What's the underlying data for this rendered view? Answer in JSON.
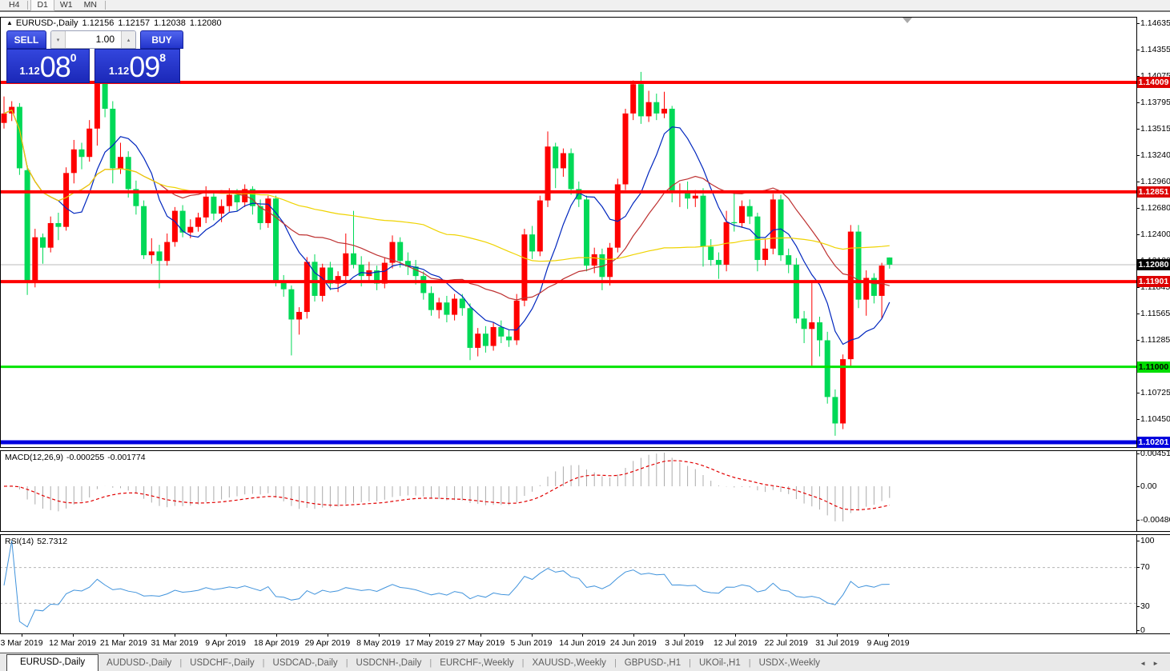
{
  "toolbar": {
    "buttons": [
      {
        "label": "H4",
        "active": false
      },
      {
        "label": "D1",
        "active": true
      },
      {
        "label": "W1",
        "active": false
      },
      {
        "label": "MN",
        "active": false
      }
    ]
  },
  "header": {
    "collapse_icon": "▲",
    "symbol": "EURUSD-,Daily",
    "open": "1.12156",
    "high": "1.12157",
    "low": "1.12038",
    "close": "1.12080"
  },
  "trade_panel": {
    "sell_label": "SELL",
    "buy_label": "BUY",
    "volume": "1.00",
    "spin_down_icon": "▾",
    "spin_up_icon": "▴",
    "sell_price": {
      "prefix": "1.12",
      "big": "08",
      "sup": "0"
    },
    "buy_price": {
      "prefix": "1.12",
      "big": "09",
      "sup": "8"
    }
  },
  "chart_data": {
    "type": "candlestick",
    "title": "EURUSD-,Daily",
    "colors": {
      "bull": "#fe0000",
      "bear": "#00d957",
      "current_line": "#bbbbbb",
      "ma_fast": "#0026be",
      "ma_mid": "#be3232",
      "ma_slow": "#efd300",
      "macd_hist": "#acacac",
      "macd_signal": "#e10000",
      "rsi_line": "#4093dc"
    },
    "current_price": {
      "label": "1.12080",
      "value": 1.1208,
      "badge_bg": "#000000",
      "badge_fg": "#ffffff"
    },
    "levels": [
      {
        "price": 1.14009,
        "label": "1.14009",
        "color": "#fe0000",
        "thickness": 4,
        "badge_bg": "#dd0000",
        "badge_fg": "#ffffff"
      },
      {
        "price": 1.12851,
        "label": "1.12851",
        "color": "#fe0000",
        "thickness": 4,
        "badge_bg": "#dd0000",
        "badge_fg": "#ffffff"
      },
      {
        "price": 1.11901,
        "label": "1.11901",
        "color": "#fe0000",
        "thickness": 4,
        "badge_bg": "#dd0000",
        "badge_fg": "#ffffff"
      },
      {
        "price": 1.11,
        "label": "1.11000",
        "color": "#00e400",
        "thickness": 3,
        "badge_bg": "#00dd00",
        "badge_fg": "#000000"
      },
      {
        "price": 1.10201,
        "label": "1.10201",
        "color": "#0000e0",
        "thickness": 5,
        "badge_bg": "#0000dd",
        "badge_fg": "#ffffff"
      }
    ],
    "price_axis_ticks": [
      "1.14635",
      "1.14355",
      "1.14075",
      "1.13795",
      "1.13515",
      "1.13240",
      "1.12960",
      "1.12680",
      "1.12400",
      "1.12120",
      "1.11845",
      "1.11565",
      "1.11285",
      "1.11000",
      "1.10725",
      "1.10450"
    ],
    "moving_averages": [
      {
        "period": 8
      },
      {
        "period": 21
      },
      {
        "period": 55
      }
    ],
    "macd": {
      "label": "MACD(12,26,9)",
      "main_value": "-0.000255",
      "signal_value": "-0.001774",
      "fast": 12,
      "slow": 26,
      "signal": 9,
      "axis_ticks": [
        "0.004517",
        "0.00",
        "-0.004806"
      ]
    },
    "rsi": {
      "label": "RSI(14)",
      "value": "52.7312",
      "period": 14,
      "guide_levels": [
        70,
        30
      ],
      "axis_ticks": [
        "100",
        "70",
        "30",
        "0"
      ]
    },
    "x_axis_dates": [
      "3 Mar 2019",
      "12 Mar 2019",
      "21 Mar 2019",
      "31 Mar 2019",
      "9 Apr 2019",
      "18 Apr 2019",
      "29 Apr 2019",
      "8 May 2019",
      "17 May 2019",
      "27 May 2019",
      "5 Jun 2019",
      "14 Jun 2019",
      "24 Jun 2019",
      "3 Jul 2019",
      "12 Jul 2019",
      "22 Jul 2019",
      "31 Jul 2019",
      "9 Aug 2019"
    ],
    "candles": [
      [
        1.1358,
        1.1386,
        1.1352,
        1.1368
      ],
      [
        1.1368,
        1.1381,
        1.136,
        1.1375
      ],
      [
        1.1375,
        1.1379,
        1.1303,
        1.131
      ],
      [
        1.1308,
        1.1313,
        1.1176,
        1.119
      ],
      [
        1.119,
        1.1246,
        1.1184,
        1.1237
      ],
      [
        1.1237,
        1.1241,
        1.1209,
        1.1226
      ],
      [
        1.1226,
        1.1259,
        1.1221,
        1.1252
      ],
      [
        1.1252,
        1.1263,
        1.1234,
        1.1248
      ],
      [
        1.1248,
        1.1311,
        1.1244,
        1.1305
      ],
      [
        1.1305,
        1.134,
        1.1294,
        1.133
      ],
      [
        1.133,
        1.1337,
        1.1309,
        1.1322
      ],
      [
        1.1322,
        1.1361,
        1.1317,
        1.1352
      ],
      [
        1.1352,
        1.1438,
        1.1334,
        1.1434
      ],
      [
        1.1434,
        1.1439,
        1.1364,
        1.1373
      ],
      [
        1.1373,
        1.1381,
        1.1294,
        1.131
      ],
      [
        1.131,
        1.1337,
        1.1304,
        1.1322
      ],
      [
        1.1322,
        1.1328,
        1.1279,
        1.1288
      ],
      [
        1.1288,
        1.1297,
        1.1261,
        1.127
      ],
      [
        1.127,
        1.1276,
        1.1214,
        1.1218
      ],
      [
        1.1218,
        1.1236,
        1.1209,
        1.1222
      ],
      [
        1.1222,
        1.1229,
        1.1183,
        1.1212
      ],
      [
        1.1212,
        1.1241,
        1.1207,
        1.1232
      ],
      [
        1.1232,
        1.1269,
        1.1227,
        1.1265
      ],
      [
        1.1265,
        1.1271,
        1.1237,
        1.1242
      ],
      [
        1.1242,
        1.1256,
        1.1236,
        1.1248
      ],
      [
        1.1248,
        1.1263,
        1.1243,
        1.1258
      ],
      [
        1.1258,
        1.1291,
        1.1252,
        1.128
      ],
      [
        1.128,
        1.1286,
        1.1255,
        1.1262
      ],
      [
        1.1262,
        1.1277,
        1.1253,
        1.127
      ],
      [
        1.127,
        1.1289,
        1.1264,
        1.1282
      ],
      [
        1.1282,
        1.1288,
        1.1265,
        1.1274
      ],
      [
        1.1274,
        1.1293,
        1.1269,
        1.1288
      ],
      [
        1.1288,
        1.1291,
        1.1261,
        1.127
      ],
      [
        1.127,
        1.1277,
        1.1245,
        1.1252
      ],
      [
        1.1252,
        1.1281,
        1.1247,
        1.1278
      ],
      [
        1.1278,
        1.1281,
        1.1185,
        1.119
      ],
      [
        1.119,
        1.1197,
        1.1174,
        1.1182
      ],
      [
        1.1182,
        1.1186,
        1.1112,
        1.115
      ],
      [
        1.115,
        1.1163,
        1.1134,
        1.1158
      ],
      [
        1.1158,
        1.1216,
        1.1151,
        1.1211
      ],
      [
        1.1211,
        1.1219,
        1.1169,
        1.1175
      ],
      [
        1.1175,
        1.1209,
        1.1169,
        1.1205
      ],
      [
        1.1205,
        1.1211,
        1.1181,
        1.1188
      ],
      [
        1.1188,
        1.1201,
        1.1179,
        1.1196
      ],
      [
        1.1196,
        1.1241,
        1.1189,
        1.122
      ],
      [
        1.122,
        1.1265,
        1.1204,
        1.1208
      ],
      [
        1.1208,
        1.1217,
        1.1185,
        1.1196
      ],
      [
        1.1196,
        1.1211,
        1.1189,
        1.1202
      ],
      [
        1.1202,
        1.1207,
        1.1181,
        1.1188
      ],
      [
        1.1188,
        1.1216,
        1.1183,
        1.121
      ],
      [
        1.121,
        1.1239,
        1.1204,
        1.1232
      ],
      [
        1.1232,
        1.1237,
        1.1205,
        1.1212
      ],
      [
        1.1212,
        1.1221,
        1.1197,
        1.1206
      ],
      [
        1.1206,
        1.1213,
        1.1187,
        1.1196
      ],
      [
        1.1196,
        1.1201,
        1.1171,
        1.1178
      ],
      [
        1.1178,
        1.1185,
        1.1154,
        1.116
      ],
      [
        1.116,
        1.1173,
        1.1151,
        1.1168
      ],
      [
        1.1168,
        1.1175,
        1.1147,
        1.1155
      ],
      [
        1.1155,
        1.1177,
        1.1149,
        1.1172
      ],
      [
        1.1172,
        1.1177,
        1.1154,
        1.1162
      ],
      [
        1.1162,
        1.1167,
        1.1107,
        1.112
      ],
      [
        1.112,
        1.1141,
        1.1111,
        1.1135
      ],
      [
        1.1135,
        1.1143,
        1.1115,
        1.1122
      ],
      [
        1.1122,
        1.1147,
        1.1117,
        1.1142
      ],
      [
        1.1142,
        1.1149,
        1.1125,
        1.1132
      ],
      [
        1.1132,
        1.1139,
        1.1121,
        1.1128
      ],
      [
        1.1128,
        1.1177,
        1.1123,
        1.117
      ],
      [
        1.117,
        1.1246,
        1.1164,
        1.124
      ],
      [
        1.124,
        1.1249,
        1.1214,
        1.1222
      ],
      [
        1.1222,
        1.1281,
        1.1217,
        1.1276
      ],
      [
        1.1276,
        1.1349,
        1.1269,
        1.1333
      ],
      [
        1.1333,
        1.1337,
        1.1289,
        1.131
      ],
      [
        1.131,
        1.1331,
        1.1301,
        1.1326
      ],
      [
        1.1326,
        1.1331,
        1.1282,
        1.1288
      ],
      [
        1.1288,
        1.1296,
        1.1269,
        1.1277
      ],
      [
        1.1277,
        1.1281,
        1.1201,
        1.1207
      ],
      [
        1.1207,
        1.1226,
        1.1199,
        1.1219
      ],
      [
        1.1219,
        1.1225,
        1.1181,
        1.1195
      ],
      [
        1.1195,
        1.1231,
        1.1186,
        1.1226
      ],
      [
        1.1226,
        1.1299,
        1.1221,
        1.1293
      ],
      [
        1.1293,
        1.1373,
        1.1287,
        1.1368
      ],
      [
        1.1368,
        1.1403,
        1.1361,
        1.1399
      ],
      [
        1.1399,
        1.1412,
        1.1357,
        1.1365
      ],
      [
        1.1365,
        1.1392,
        1.1359,
        1.138
      ],
      [
        1.138,
        1.1389,
        1.1361,
        1.1368
      ],
      [
        1.1368,
        1.1391,
        1.1363,
        1.1373
      ],
      [
        1.1373,
        1.1376,
        1.1274,
        1.1284
      ],
      [
        1.1284,
        1.1294,
        1.1269,
        1.1285
      ],
      [
        1.1285,
        1.1296,
        1.1267,
        1.1278
      ],
      [
        1.1278,
        1.1287,
        1.1269,
        1.1281
      ],
      [
        1.1281,
        1.1289,
        1.1206,
        1.1227
      ],
      [
        1.1227,
        1.1235,
        1.1207,
        1.1213
      ],
      [
        1.1213,
        1.1221,
        1.1193,
        1.1208
      ],
      [
        1.1208,
        1.1265,
        1.1201,
        1.1253
      ],
      [
        1.1253,
        1.1286,
        1.1243,
        1.1252
      ],
      [
        1.1252,
        1.1276,
        1.1247,
        1.127
      ],
      [
        1.127,
        1.1277,
        1.1251,
        1.1259
      ],
      [
        1.1259,
        1.1263,
        1.1201,
        1.1213
      ],
      [
        1.1213,
        1.1235,
        1.1207,
        1.1225
      ],
      [
        1.1225,
        1.1283,
        1.1219,
        1.1277
      ],
      [
        1.1277,
        1.1282,
        1.1212,
        1.1218
      ],
      [
        1.1218,
        1.1225,
        1.1199,
        1.1208
      ],
      [
        1.1208,
        1.1215,
        1.1146,
        1.1151
      ],
      [
        1.1151,
        1.1159,
        1.1125,
        1.114
      ],
      [
        1.114,
        1.1189,
        1.1101,
        1.1147
      ],
      [
        1.1147,
        1.1153,
        1.1111,
        1.1128
      ],
      [
        1.1128,
        1.1137,
        1.1061,
        1.1068
      ],
      [
        1.1068,
        1.1076,
        1.1027,
        1.104
      ],
      [
        1.104,
        1.1113,
        1.1034,
        1.1108
      ],
      [
        1.1108,
        1.125,
        1.1099,
        1.1243
      ],
      [
        1.1243,
        1.125,
        1.1162,
        1.1171
      ],
      [
        1.1171,
        1.1202,
        1.1154,
        1.1194
      ],
      [
        1.1194,
        1.1199,
        1.1167,
        1.1175
      ],
      [
        1.1175,
        1.121,
        1.1151,
        1.1207
      ],
      [
        1.12156,
        1.12157,
        1.12038,
        1.1208
      ]
    ]
  },
  "tabs": {
    "separator": "|",
    "scroll_left": "◄",
    "scroll_right": "►",
    "items": [
      {
        "label": "EURUSD-,Daily",
        "active": true
      },
      {
        "label": "AUDUSD-,Daily",
        "active": false
      },
      {
        "label": "USDCHF-,Daily",
        "active": false
      },
      {
        "label": "USDCAD-,Daily",
        "active": false
      },
      {
        "label": "USDCNH-,Daily",
        "active": false
      },
      {
        "label": "EURCHF-,Weekly",
        "active": false
      },
      {
        "label": "XAUUSD-,Weekly",
        "active": false
      },
      {
        "label": "GBPUSD-,H1",
        "active": false
      },
      {
        "label": "UKOil-,H1",
        "active": false
      },
      {
        "label": "USDX-,Weekly",
        "active": false
      }
    ]
  }
}
